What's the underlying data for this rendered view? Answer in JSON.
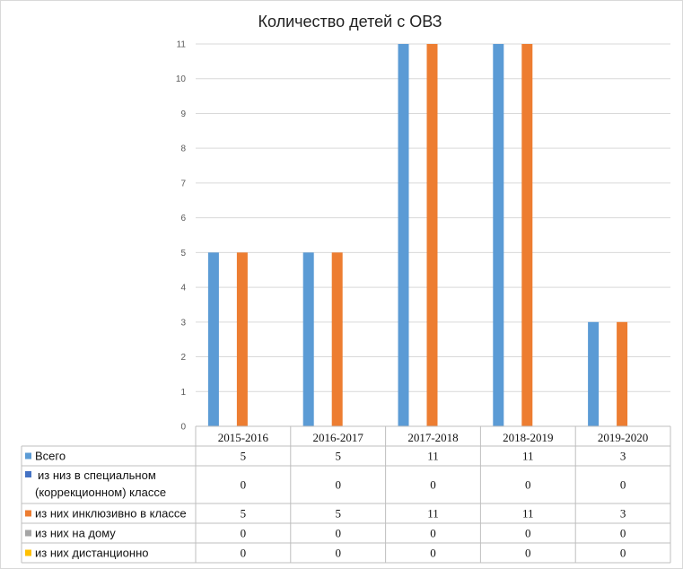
{
  "chart_data": {
    "type": "bar",
    "title": "Количество детей с ОВЗ",
    "categories": [
      "2015-2016",
      "2016-2017",
      "2017-2018",
      "2018-2019",
      "2019-2020"
    ],
    "ylim": [
      0,
      11
    ],
    "yticks": [
      0,
      1,
      2,
      3,
      4,
      5,
      6,
      7,
      8,
      9,
      10,
      11
    ],
    "grid": true,
    "legend": "data-table",
    "series": [
      {
        "name": "Всего",
        "label_lines": [
          "Всего"
        ],
        "color": "#5b9bd5",
        "values": [
          5,
          5,
          11,
          11,
          3
        ]
      },
      {
        "name": "из низ в специальном (коррекционном) классе",
        "label_lines": [
          "из низ в специальном",
          "(коррекционном) классе"
        ],
        "color": "#4472c4",
        "values": [
          0,
          0,
          0,
          0,
          0
        ]
      },
      {
        "name": "из них инклюзивно в классе",
        "label_lines": [
          "из них инклюзивно в классе"
        ],
        "color": "#ed7d31",
        "values": [
          5,
          5,
          11,
          11,
          3
        ]
      },
      {
        "name": "из них на дому",
        "label_lines": [
          "из них на дому"
        ],
        "color": "#a5a5a5",
        "values": [
          0,
          0,
          0,
          0,
          0
        ]
      },
      {
        "name": "из них дистанционно",
        "label_lines": [
          "из них дистанционно"
        ],
        "color": "#ffc000",
        "values": [
          0,
          0,
          0,
          0,
          0
        ]
      }
    ]
  }
}
